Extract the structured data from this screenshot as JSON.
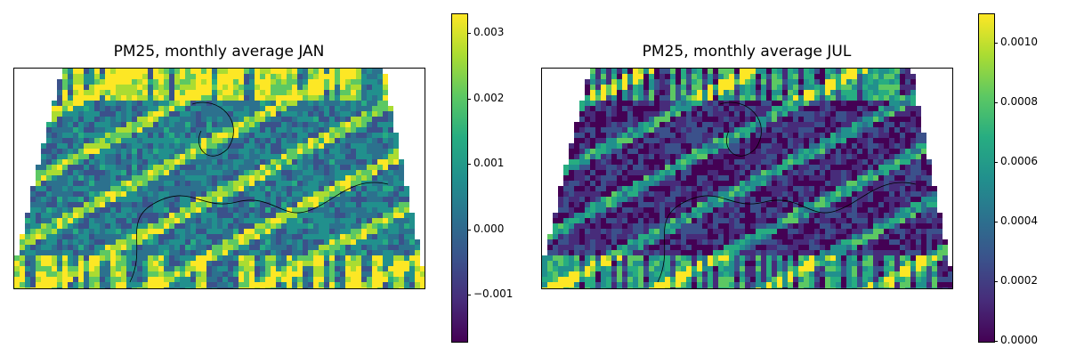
{
  "panels": [
    {
      "title": "PM25, monthly average JAN",
      "colorbar": {
        "range": [
          -0.0017,
          0.0033
        ],
        "ticks": [
          {
            "value": 0.003,
            "label": "0.003"
          },
          {
            "value": 0.002,
            "label": "0.002"
          },
          {
            "value": 0.001,
            "label": "0.001"
          },
          {
            "value": 0.0,
            "label": "0.000"
          },
          {
            "value": -0.001,
            "label": "−0.001"
          }
        ],
        "colormap": "viridis"
      }
    },
    {
      "title": "PM25, monthly average JUL",
      "colorbar": {
        "range": [
          0.0,
          0.0011
        ],
        "ticks": [
          {
            "value": 0.001,
            "label": "0.0010"
          },
          {
            "value": 0.0008,
            "label": "0.0008"
          },
          {
            "value": 0.0006,
            "label": "0.0006"
          },
          {
            "value": 0.0004,
            "label": "0.0004"
          },
          {
            "value": 0.0002,
            "label": "0.0002"
          },
          {
            "value": 0.0,
            "label": "0.0000"
          }
        ],
        "colormap": "viridis"
      }
    }
  ],
  "colors": {
    "viridis": [
      "#440154",
      "#472c7a",
      "#3b518b",
      "#2c718e",
      "#21908d",
      "#27ad81",
      "#5cc863",
      "#aadc32",
      "#fde725"
    ]
  }
}
